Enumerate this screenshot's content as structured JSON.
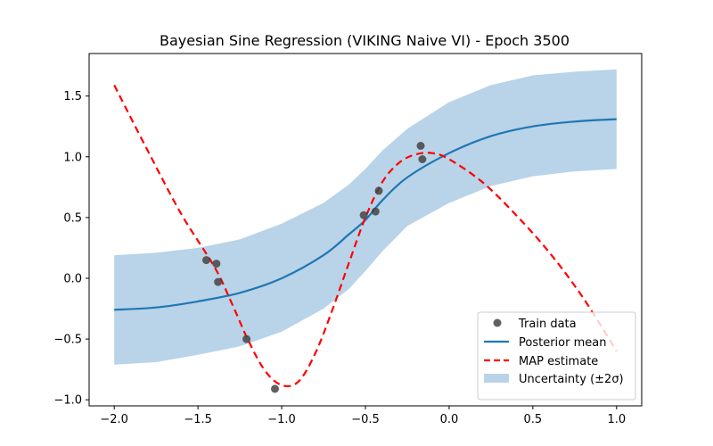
{
  "chart_data": {
    "type": "line",
    "title": "Bayesian Sine Regression (VIKING Naive VI) - Epoch 3500",
    "xlabel": "",
    "ylabel": "",
    "xlim": [
      -2.15,
      1.15
    ],
    "ylim": [
      -1.05,
      1.85
    ],
    "x_ticks": [
      -2.0,
      -1.5,
      -1.0,
      -0.5,
      0.0,
      0.5,
      1.0
    ],
    "x_tick_labels": [
      "−2.0",
      "−1.5",
      "−1.0",
      "−0.5",
      "0.0",
      "0.5",
      "1.0"
    ],
    "y_ticks": [
      -1.0,
      -0.5,
      0.0,
      0.5,
      1.0,
      1.5
    ],
    "y_tick_labels": [
      "−1.0",
      "−0.5",
      "0.0",
      "0.5",
      "1.0",
      "1.5"
    ],
    "grid": false,
    "legend_position": "lower-right",
    "colors": {
      "train": "#444444",
      "posterior": "#1f77b4",
      "map": "#ff0000",
      "band": "#b9d3e8"
    },
    "series": [
      {
        "name": "Train data",
        "kind": "scatter",
        "x": [
          -1.45,
          -1.39,
          -1.38,
          -1.21,
          -1.04,
          -0.51,
          -0.44,
          -0.42,
          -0.17,
          -0.16
        ],
        "y": [
          0.15,
          0.12,
          -0.03,
          -0.5,
          -0.91,
          0.52,
          0.55,
          0.72,
          1.09,
          0.98
        ]
      },
      {
        "name": "Posterior mean",
        "kind": "line",
        "x": [
          -2.0,
          -1.75,
          -1.5,
          -1.25,
          -1.0,
          -0.75,
          -0.6,
          -0.5,
          -0.4,
          -0.25,
          0.0,
          0.25,
          0.5,
          0.75,
          1.0
        ],
        "y": [
          -0.26,
          -0.24,
          -0.19,
          -0.12,
          0.0,
          0.19,
          0.36,
          0.48,
          0.64,
          0.83,
          1.03,
          1.17,
          1.25,
          1.29,
          1.31
        ]
      },
      {
        "name": "MAP estimate",
        "kind": "dashed-line",
        "x": [
          -2.0,
          -1.8,
          -1.6,
          -1.4,
          -1.3,
          -1.2,
          -1.1,
          -1.0,
          -0.9,
          -0.8,
          -0.7,
          -0.6,
          -0.5,
          -0.4,
          -0.3,
          -0.2,
          -0.1,
          0.0,
          0.2,
          0.4,
          0.6,
          0.8,
          1.0
        ],
        "y": [
          1.59,
          1.05,
          0.53,
          0.09,
          -0.2,
          -0.51,
          -0.76,
          -0.88,
          -0.85,
          -0.62,
          -0.27,
          0.12,
          0.5,
          0.79,
          0.95,
          1.02,
          1.03,
          0.98,
          0.79,
          0.52,
          0.21,
          -0.16,
          -0.6
        ]
      },
      {
        "name": "Uncertainty (±2σ)",
        "kind": "band",
        "x": [
          -2.0,
          -1.75,
          -1.5,
          -1.25,
          -1.0,
          -0.75,
          -0.6,
          -0.5,
          -0.4,
          -0.25,
          0.0,
          0.25,
          0.5,
          0.75,
          1.0
        ],
        "upper": [
          0.19,
          0.21,
          0.25,
          0.32,
          0.45,
          0.62,
          0.77,
          0.9,
          1.05,
          1.23,
          1.45,
          1.59,
          1.67,
          1.7,
          1.72
        ],
        "lower": [
          -0.71,
          -0.69,
          -0.63,
          -0.56,
          -0.44,
          -0.25,
          -0.09,
          0.06,
          0.22,
          0.43,
          0.62,
          0.76,
          0.84,
          0.88,
          0.9
        ]
      }
    ]
  }
}
